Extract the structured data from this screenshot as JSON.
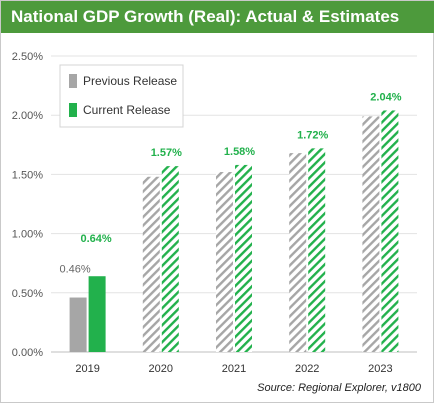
{
  "header": {
    "title": "National GDP Growth (Real): Actual  & Estimates",
    "source": "Source:  Regional Explorer, v1800"
  },
  "colors": {
    "title_bg": "#4d9a3c",
    "previous": "#a6a6a6",
    "current": "#22b14c",
    "current_label": "#22b14c"
  },
  "chart_data": {
    "type": "bar",
    "categories": [
      "2019",
      "2020",
      "2021",
      "2022",
      "2023"
    ],
    "series": [
      {
        "name": "Previous Release",
        "values": [
          0.46,
          1.48,
          1.52,
          1.68,
          1.99
        ],
        "style": "gray; hatched for 2020–2023"
      },
      {
        "name": "Current Release",
        "values": [
          0.64,
          1.57,
          1.58,
          1.72,
          2.04
        ],
        "style": "green; hatched for 2020–2023"
      }
    ],
    "data_labels": {
      "Previous Release": [
        "0.46%",
        null,
        null,
        null,
        null
      ],
      "Current Release": [
        "0.64%",
        "1.57%",
        "1.58%",
        "1.72%",
        "2.04%"
      ]
    },
    "ylim": [
      0,
      2.5
    ],
    "yticks": [
      "0.00%",
      "0.50%",
      "1.00%",
      "1.50%",
      "2.00%",
      "2.50%"
    ],
    "grid": true,
    "legend_position": "top-left"
  }
}
